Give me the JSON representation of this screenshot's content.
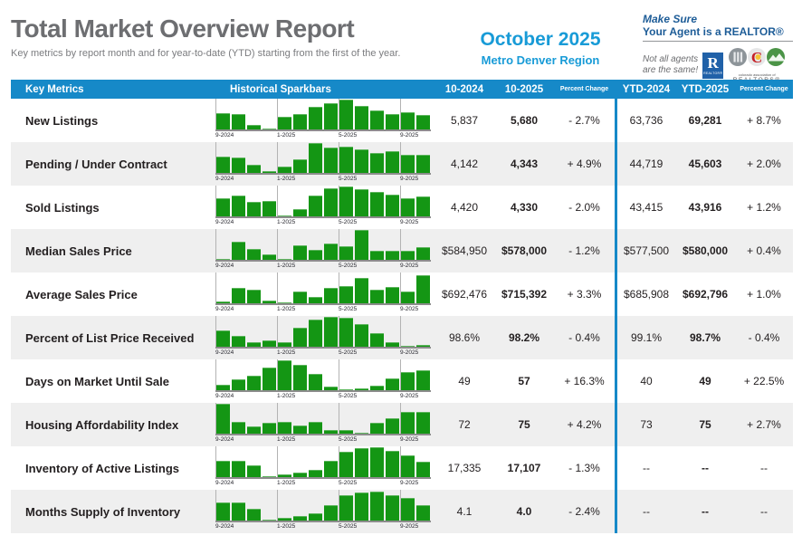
{
  "header": {
    "title": "Total Market Overview Report",
    "subtitle": "Key metrics by report month and for year-to-date (YTD) starting from the first of the year.",
    "report_month": "October 2025",
    "region": "Metro Denver Region",
    "promo": {
      "make_sure": "Make Sure",
      "agent_line": "Your Agent is a REALTOR®",
      "tagline_line1": "Not all agents",
      "tagline_line2": "are the same!",
      "r_letter": "R",
      "r_caption": "REALTOR®",
      "car_caption_top": "colorado association of",
      "car_caption": "REALTORS®"
    }
  },
  "colors": {
    "header_blue": "#1689c8",
    "bright_blue": "#189bd7",
    "promo_blue": "#1d5c97",
    "bar_green": "#149614",
    "row_alt_gray": "#efefef",
    "title_gray": "#6d6e71"
  },
  "table_header": {
    "key_metrics": "Key Metrics",
    "sparkbars": "Historical Sparkbars",
    "c1": "10-2024",
    "c2": "10-2025",
    "c3": "Percent Change",
    "c4": "YTD-2024",
    "c5": "YTD-2025",
    "c6": "Percent Change"
  },
  "table": {
    "axis_labels": [
      "9-2024",
      "1-2025",
      "5-2025",
      "9-2025"
    ],
    "rows": [
      {
        "metric": "New Listings",
        "m2024": "5,837",
        "m2025": "5,680",
        "m_pct": "- 2.7%",
        "y2024": "63,736",
        "y2025": "69,281",
        "y_pct": "+ 8.7%",
        "spark": [
          0.55,
          0.5,
          0.15,
          0.04,
          0.42,
          0.5,
          0.75,
          0.88,
          1.0,
          0.78,
          0.65,
          0.52,
          0.57,
          0.47
        ]
      },
      {
        "metric": "Pending / Under Contract",
        "m2024": "4,142",
        "m2025": "4,343",
        "m_pct": "+ 4.9%",
        "y2024": "44,719",
        "y2025": "45,603",
        "y_pct": "+ 2.0%",
        "spark": [
          0.55,
          0.5,
          0.28,
          0.05,
          0.22,
          0.45,
          1.0,
          0.85,
          0.88,
          0.78,
          0.68,
          0.72,
          0.6,
          0.62
        ]
      },
      {
        "metric": "Sold Listings",
        "m2024": "4,420",
        "m2025": "4,330",
        "m_pct": "- 2.0%",
        "y2024": "43,415",
        "y2025": "43,916",
        "y_pct": "+ 1.2%",
        "spark": [
          0.62,
          0.7,
          0.48,
          0.52,
          0.04,
          0.25,
          0.7,
          0.95,
          1.0,
          0.92,
          0.82,
          0.72,
          0.62,
          0.66
        ]
      },
      {
        "metric": "Median Sales Price",
        "m2024": "$584,950",
        "m2025": "$578,000",
        "m_pct": "- 1.2%",
        "y2024": "$577,500",
        "y2025": "$580,000",
        "y_pct": "+ 0.4%",
        "spark": [
          0.03,
          0.62,
          0.35,
          0.18,
          0.03,
          0.48,
          0.32,
          0.55,
          0.45,
          1.0,
          0.3,
          0.3,
          0.3,
          0.42
        ]
      },
      {
        "metric": "Average Sales Price",
        "m2024": "$692,476",
        "m2025": "$715,392",
        "m_pct": "+ 3.3%",
        "y2024": "$685,908",
        "y2025": "$692,796",
        "y_pct": "+ 1.0%",
        "spark": [
          0.05,
          0.5,
          0.45,
          0.08,
          0.03,
          0.4,
          0.22,
          0.52,
          0.58,
          0.85,
          0.45,
          0.55,
          0.4,
          0.95
        ]
      },
      {
        "metric": "Percent of List Price Received",
        "m2024": "98.6%",
        "m2025": "98.2%",
        "m_pct": "- 0.4%",
        "y2024": "99.1%",
        "y2025": "98.7%",
        "y_pct": "- 0.4%",
        "spark": [
          0.55,
          0.35,
          0.15,
          0.22,
          0.15,
          0.65,
          0.9,
          1.0,
          0.97,
          0.75,
          0.45,
          0.15,
          0.03,
          0.05
        ]
      },
      {
        "metric": "Days on Market Until Sale",
        "m2024": "49",
        "m2025": "57",
        "m_pct": "+ 16.3%",
        "y2024": "40",
        "y2025": "49",
        "y_pct": "+ 22.5%",
        "spark": [
          0.18,
          0.35,
          0.48,
          0.75,
          1.0,
          0.85,
          0.55,
          0.12,
          0.02,
          0.05,
          0.15,
          0.4,
          0.62,
          0.68
        ]
      },
      {
        "metric": "Housing Affordability Index",
        "m2024": "72",
        "m2025": "75",
        "m_pct": "+ 4.2%",
        "y2024": "73",
        "y2025": "75",
        "y_pct": "+ 2.7%",
        "spark": [
          1.0,
          0.38,
          0.25,
          0.35,
          0.38,
          0.27,
          0.38,
          0.13,
          0.13,
          0.02,
          0.35,
          0.52,
          0.72,
          0.72
        ]
      },
      {
        "metric": "Inventory of Active Listings",
        "m2024": "17,335",
        "m2025": "17,107",
        "m_pct": "- 1.3%",
        "y2024": "--",
        "y2025": "--",
        "y_pct": "--",
        "spark": [
          0.55,
          0.55,
          0.4,
          0.03,
          0.08,
          0.15,
          0.25,
          0.55,
          0.85,
          0.97,
          1.0,
          0.88,
          0.72,
          0.5
        ]
      },
      {
        "metric": "Months Supply of Inventory",
        "m2024": "4.1",
        "m2025": "4.0",
        "m_pct": "- 2.4%",
        "y2024": "--",
        "y2025": "--",
        "y_pct": "--",
        "spark": [
          0.62,
          0.6,
          0.4,
          0.03,
          0.08,
          0.15,
          0.25,
          0.5,
          0.85,
          0.95,
          0.97,
          0.85,
          0.75,
          0.5
        ]
      }
    ]
  }
}
